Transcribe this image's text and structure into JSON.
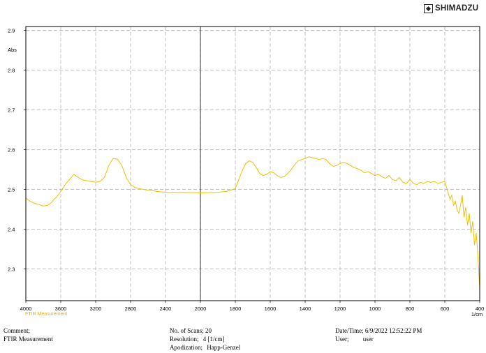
{
  "logo": {
    "text": "SHIMADZU",
    "icon": "shimadzu-logo-icon"
  },
  "chart_data": {
    "type": "line",
    "ylabel": "Abs",
    "xlabel": "1/cm",
    "xlim": [
      4000,
      400
    ],
    "ylim": [
      2.22,
      2.91
    ],
    "x_reversed": true,
    "grid": true,
    "legend": "bottom-left",
    "xticks": [
      4000,
      3600,
      3200,
      2800,
      2400,
      2000,
      1800,
      1600,
      1400,
      1200,
      1000,
      800,
      600,
      400
    ],
    "yticks": [
      2.3,
      2.4,
      2.5,
      2.6,
      2.7,
      2.8,
      2.9
    ],
    "marker_line_x": 2000,
    "series": [
      {
        "name": "FTIR Measurement",
        "color": "#f0c000",
        "x": [
          4000,
          3950,
          3900,
          3850,
          3800,
          3750,
          3700,
          3680,
          3650,
          3600,
          3550,
          3500,
          3450,
          3400,
          3350,
          3300,
          3250,
          3200,
          3150,
          3100,
          3050,
          3000,
          2950,
          2900,
          2850,
          2800,
          2750,
          2700,
          2650,
          2600,
          2550,
          2500,
          2450,
          2400,
          2350,
          2300,
          2250,
          2200,
          2150,
          2100,
          2050,
          2000,
          1950,
          1900,
          1850,
          1800,
          1780,
          1760,
          1740,
          1720,
          1700,
          1680,
          1660,
          1640,
          1620,
          1600,
          1580,
          1560,
          1540,
          1520,
          1500,
          1480,
          1460,
          1440,
          1420,
          1400,
          1380,
          1360,
          1340,
          1320,
          1300,
          1280,
          1260,
          1240,
          1220,
          1200,
          1180,
          1160,
          1140,
          1120,
          1100,
          1080,
          1060,
          1040,
          1020,
          1000,
          980,
          960,
          940,
          920,
          900,
          880,
          860,
          840,
          820,
          800,
          780,
          760,
          740,
          720,
          700,
          680,
          660,
          640,
          620,
          600,
          590,
          580,
          570,
          560,
          550,
          540,
          530,
          520,
          510,
          500,
          490,
          480,
          470,
          460,
          450,
          440,
          430,
          420,
          410,
          400
        ],
        "y": [
          2.478,
          2.47,
          2.465,
          2.462,
          2.458,
          2.46,
          2.468,
          2.475,
          2.48,
          2.495,
          2.512,
          2.525,
          2.538,
          2.53,
          2.524,
          2.522,
          2.52,
          2.518,
          2.52,
          2.53,
          2.56,
          2.578,
          2.576,
          2.56,
          2.53,
          2.512,
          2.505,
          2.502,
          2.5,
          2.498,
          2.497,
          2.495,
          2.494,
          2.493,
          2.492,
          2.493,
          2.492,
          2.493,
          2.492,
          2.492,
          2.492,
          2.491,
          2.492,
          2.493,
          2.495,
          2.502,
          2.525,
          2.548,
          2.565,
          2.572,
          2.568,
          2.555,
          2.54,
          2.535,
          2.538,
          2.545,
          2.542,
          2.535,
          2.53,
          2.532,
          2.54,
          2.55,
          2.562,
          2.572,
          2.575,
          2.578,
          2.582,
          2.58,
          2.578,
          2.575,
          2.578,
          2.575,
          2.565,
          2.558,
          2.56,
          2.565,
          2.568,
          2.565,
          2.56,
          2.555,
          2.552,
          2.548,
          2.542,
          2.545,
          2.54,
          2.535,
          2.538,
          2.532,
          2.528,
          2.535,
          2.525,
          2.522,
          2.53,
          2.518,
          2.515,
          2.525,
          2.515,
          2.512,
          2.518,
          2.515,
          2.52,
          2.518,
          2.52,
          2.515,
          2.518,
          2.52,
          2.505,
          2.49,
          2.475,
          2.485,
          2.46,
          2.47,
          2.45,
          2.44,
          2.46,
          2.485,
          2.43,
          2.455,
          2.41,
          2.44,
          2.39,
          2.42,
          2.36,
          2.39,
          2.33,
          2.25
        ]
      }
    ]
  },
  "info": {
    "comment_label": "Comment;",
    "comment_value": "FTIR Measurement",
    "scans_label": "No. of Scans;",
    "scans_value": "20",
    "resolution_label": "Resolution;",
    "resolution_value": "4 [1/cm]",
    "apodization_label": "Apodization;",
    "apodization_value": "Happ-Genzel",
    "datetime_label": "Date/Time;",
    "datetime_value": "6/9/2022 12:52:22 PM",
    "user_label": "User;",
    "user_value": "user"
  }
}
